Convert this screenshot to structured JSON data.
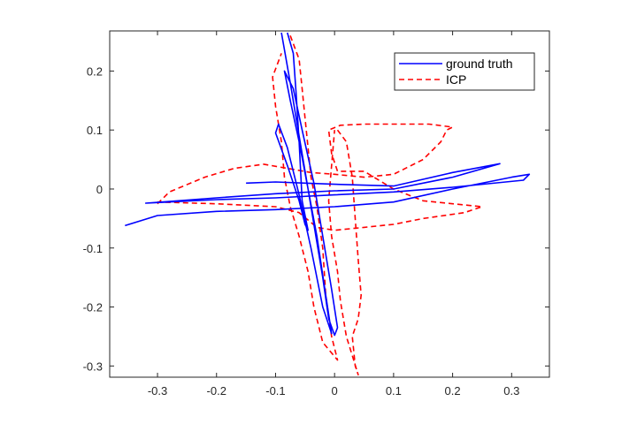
{
  "chart_data": {
    "type": "line",
    "title": "",
    "xlabel": "",
    "ylabel": "",
    "xlim": [
      -0.381,
      0.364
    ],
    "ylim": [
      -0.319,
      0.268
    ],
    "grid": false,
    "legend_position": "northeast",
    "x_ticks": [
      -0.3,
      -0.2,
      -0.1,
      0,
      0.1,
      0.2,
      0.3
    ],
    "x_tick_labels": [
      "-0.3",
      "-0.2",
      "-0.1",
      "0",
      "0.1",
      "0.2",
      "0.3"
    ],
    "y_ticks": [
      0.2,
      0.1,
      0,
      -0.1,
      -0.2,
      -0.3
    ],
    "y_tick_labels": [
      "0.2",
      "0.1",
      "0",
      "-0.1",
      "-0.2",
      "-0.3"
    ],
    "series": [
      {
        "name": "ground truth",
        "color": "#0000ff",
        "style": "solid",
        "points": [
          [
            -0.09,
            0.265
          ],
          [
            -0.075,
            0.18
          ],
          [
            -0.06,
            0.09
          ],
          [
            -0.045,
            0.0
          ],
          [
            -0.035,
            -0.06
          ],
          [
            -0.02,
            -0.15
          ],
          [
            -0.01,
            -0.22
          ],
          [
            0.0,
            -0.248
          ],
          [
            0.005,
            -0.235
          ],
          [
            -0.005,
            -0.17
          ],
          [
            -0.02,
            -0.08
          ],
          [
            -0.035,
            0.01
          ],
          [
            -0.055,
            0.1
          ],
          [
            -0.07,
            0.17
          ],
          [
            -0.085,
            0.2
          ],
          [
            -0.075,
            0.15
          ],
          [
            -0.06,
            0.08
          ],
          [
            -0.045,
            0.0
          ],
          [
            -0.03,
            -0.08
          ],
          [
            -0.015,
            -0.18
          ],
          [
            -0.005,
            -0.245
          ],
          [
            -0.02,
            -0.2
          ],
          [
            -0.04,
            -0.1
          ],
          [
            -0.06,
            -0.01
          ],
          [
            -0.08,
            0.07
          ],
          [
            -0.095,
            0.11
          ],
          [
            -0.1,
            0.095
          ],
          [
            -0.08,
            0.04
          ],
          [
            -0.06,
            -0.02
          ],
          [
            -0.05,
            -0.06
          ],
          [
            -0.045,
            -0.07
          ],
          [
            -0.055,
            -0.02
          ],
          [
            -0.06,
            0.08
          ],
          [
            -0.065,
            0.16
          ],
          [
            -0.07,
            0.23
          ],
          [
            -0.08,
            0.265
          ]
        ],
        "horizontal_points": [
          [
            -0.355,
            -0.062
          ],
          [
            -0.3,
            -0.045
          ],
          [
            -0.2,
            -0.038
          ],
          [
            -0.1,
            -0.035
          ],
          [
            0.0,
            -0.03
          ],
          [
            0.1,
            -0.022
          ],
          [
            0.2,
            0.0
          ],
          [
            0.3,
            0.02
          ],
          [
            0.33,
            0.025
          ],
          [
            0.32,
            0.015
          ],
          [
            0.2,
            0.003
          ],
          [
            0.1,
            -0.005
          ],
          [
            0.0,
            -0.01
          ],
          [
            -0.1,
            -0.015
          ],
          [
            -0.2,
            -0.018
          ],
          [
            -0.3,
            -0.023
          ],
          [
            -0.32,
            -0.024
          ],
          [
            -0.2,
            -0.015
          ],
          [
            -0.1,
            -0.008
          ],
          [
            0.0,
            -0.003
          ],
          [
            0.1,
            0.0
          ],
          [
            0.2,
            0.02
          ],
          [
            0.28,
            0.043
          ],
          [
            0.2,
            0.028
          ],
          [
            0.1,
            0.005
          ],
          [
            0.0,
            0.008
          ],
          [
            -0.05,
            0.01
          ],
          [
            -0.1,
            0.012
          ],
          [
            -0.15,
            0.01
          ]
        ]
      },
      {
        "name": "ICP",
        "color": "#ff0000",
        "style": "dashed",
        "points": [
          [
            -0.075,
            0.26
          ],
          [
            -0.06,
            0.22
          ],
          [
            -0.055,
            0.17
          ],
          [
            -0.05,
            0.12
          ],
          [
            -0.045,
            0.07
          ],
          [
            -0.04,
            0.02
          ],
          [
            -0.03,
            -0.03
          ],
          [
            -0.02,
            -0.1
          ],
          [
            -0.015,
            -0.18
          ],
          [
            -0.005,
            -0.25
          ],
          [
            0.005,
            -0.29
          ],
          [
            -0.02,
            -0.26
          ],
          [
            -0.035,
            -0.2
          ],
          [
            -0.045,
            -0.14
          ],
          [
            -0.06,
            -0.08
          ],
          [
            -0.075,
            -0.03
          ],
          [
            -0.085,
            0.02
          ],
          [
            -0.09,
            0.08
          ],
          [
            -0.1,
            0.14
          ],
          [
            -0.105,
            0.19
          ],
          [
            -0.09,
            0.23
          ]
        ],
        "horizontal_points": [
          [
            -0.3,
            -0.025
          ],
          [
            -0.28,
            -0.005
          ],
          [
            -0.22,
            0.02
          ],
          [
            -0.17,
            0.035
          ],
          [
            -0.12,
            0.042
          ],
          [
            -0.08,
            0.035
          ],
          [
            -0.04,
            0.028
          ],
          [
            0.0,
            0.025
          ],
          [
            0.05,
            0.02
          ],
          [
            0.1,
            0.025
          ],
          [
            0.15,
            0.05
          ],
          [
            0.18,
            0.08
          ],
          [
            0.19,
            0.1
          ],
          [
            0.2,
            0.105
          ],
          [
            0.16,
            0.11
          ],
          [
            0.1,
            0.11
          ],
          [
            0.05,
            0.11
          ],
          [
            0.01,
            0.108
          ],
          [
            -0.01,
            0.1
          ],
          [
            -0.005,
            0.06
          ],
          [
            0.005,
            0.03
          ],
          [
            0.05,
            0.03
          ],
          [
            0.1,
            0.0
          ],
          [
            0.15,
            -0.02
          ],
          [
            0.2,
            -0.025
          ],
          [
            0.25,
            -0.03
          ],
          [
            0.22,
            -0.04
          ],
          [
            0.15,
            -0.05
          ],
          [
            0.1,
            -0.06
          ],
          [
            0.05,
            -0.065
          ],
          [
            0.0,
            -0.07
          ],
          [
            -0.03,
            -0.065
          ],
          [
            -0.06,
            -0.04
          ],
          [
            -0.1,
            -0.03
          ],
          [
            -0.2,
            -0.025
          ],
          [
            -0.3,
            -0.022
          ]
        ],
        "extra_points": [
          [
            0.005,
            0.1
          ],
          [
            0.02,
            0.08
          ],
          [
            0.03,
            0.02
          ],
          [
            0.035,
            -0.05
          ],
          [
            0.04,
            -0.12
          ],
          [
            0.045,
            -0.18
          ],
          [
            0.04,
            -0.22
          ],
          [
            0.03,
            -0.25
          ],
          [
            0.035,
            -0.3
          ],
          [
            0.04,
            -0.315
          ],
          [
            0.02,
            -0.25
          ],
          [
            0.01,
            -0.19
          ],
          [
            0.005,
            -0.14
          ],
          [
            -0.005,
            -0.08
          ],
          [
            -0.01,
            -0.02
          ],
          [
            -0.005,
            0.04
          ],
          [
            0.0,
            0.1
          ]
        ]
      }
    ]
  },
  "legend": {
    "items": [
      {
        "label": "ground truth",
        "color": "#0000ff",
        "style": "solid"
      },
      {
        "label": "ICP",
        "color": "#ff0000",
        "style": "dashed"
      }
    ]
  }
}
